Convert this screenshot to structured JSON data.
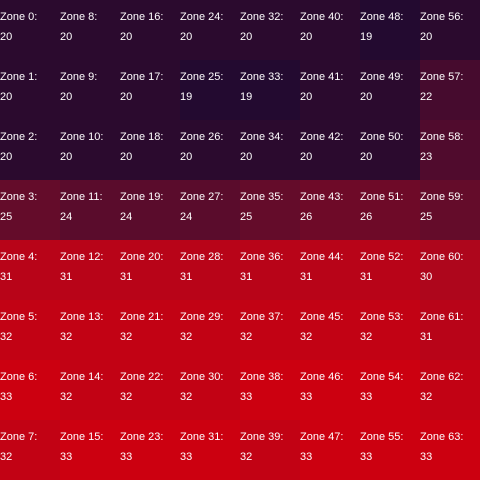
{
  "zones": [
    {
      "label": "Zone 0:",
      "value": "20",
      "color": "#2b0a2e"
    },
    {
      "label": "Zone 1:",
      "value": "20",
      "color": "#2b0a2e"
    },
    {
      "label": "Zone 2:",
      "value": "20",
      "color": "#2b0a2e"
    },
    {
      "label": "Zone 3:",
      "value": "25",
      "color": "#640c2a"
    },
    {
      "label": "Zone 4:",
      "value": "31",
      "color": "#b80418"
    },
    {
      "label": "Zone 5:",
      "value": "32",
      "color": "#c20214"
    },
    {
      "label": "Zone 6:",
      "value": "33",
      "color": "#cc0010"
    },
    {
      "label": "Zone 7:",
      "value": "32",
      "color": "#c20214"
    },
    {
      "label": "Zone 8:",
      "value": "20",
      "color": "#2b0a2e"
    },
    {
      "label": "Zone 9:",
      "value": "20",
      "color": "#2b0a2e"
    },
    {
      "label": "Zone 10:",
      "value": "20",
      "color": "#2b0a2e"
    },
    {
      "label": "Zone 11:",
      "value": "24",
      "color": "#5a0c2c"
    },
    {
      "label": "Zone 12:",
      "value": "31",
      "color": "#b80418"
    },
    {
      "label": "Zone 13:",
      "value": "32",
      "color": "#c20214"
    },
    {
      "label": "Zone 14:",
      "value": "32",
      "color": "#c20214"
    },
    {
      "label": "Zone 15:",
      "value": "33",
      "color": "#cc0010"
    },
    {
      "label": "Zone 16:",
      "value": "20",
      "color": "#2b0a2e"
    },
    {
      "label": "Zone 17:",
      "value": "20",
      "color": "#2b0a2e"
    },
    {
      "label": "Zone 18:",
      "value": "20",
      "color": "#2b0a2e"
    },
    {
      "label": "Zone 19:",
      "value": "24",
      "color": "#5a0c2c"
    },
    {
      "label": "Zone 20:",
      "value": "31",
      "color": "#b80418"
    },
    {
      "label": "Zone 21:",
      "value": "32",
      "color": "#c20214"
    },
    {
      "label": "Zone 22:",
      "value": "32",
      "color": "#c20214"
    },
    {
      "label": "Zone 23:",
      "value": "33",
      "color": "#cc0010"
    },
    {
      "label": "Zone 24:",
      "value": "20",
      "color": "#2b0a2e"
    },
    {
      "label": "Zone 25:",
      "value": "19",
      "color": "#230a30"
    },
    {
      "label": "Zone 26:",
      "value": "20",
      "color": "#2b0a2e"
    },
    {
      "label": "Zone 27:",
      "value": "24",
      "color": "#5a0c2c"
    },
    {
      "label": "Zone 28:",
      "value": "31",
      "color": "#b80418"
    },
    {
      "label": "Zone 29:",
      "value": "32",
      "color": "#c20214"
    },
    {
      "label": "Zone 30:",
      "value": "32",
      "color": "#c20214"
    },
    {
      "label": "Zone 31:",
      "value": "33",
      "color": "#cc0010"
    },
    {
      "label": "Zone 32:",
      "value": "20",
      "color": "#2b0a2e"
    },
    {
      "label": "Zone 33:",
      "value": "19",
      "color": "#230a30"
    },
    {
      "label": "Zone 34:",
      "value": "20",
      "color": "#2b0a2e"
    },
    {
      "label": "Zone 35:",
      "value": "25",
      "color": "#640c2a"
    },
    {
      "label": "Zone 36:",
      "value": "31",
      "color": "#b80418"
    },
    {
      "label": "Zone 37:",
      "value": "32",
      "color": "#c20214"
    },
    {
      "label": "Zone 38:",
      "value": "33",
      "color": "#cc0010"
    },
    {
      "label": "Zone 39:",
      "value": "32",
      "color": "#c20214"
    },
    {
      "label": "Zone 40:",
      "value": "20",
      "color": "#2b0a2e"
    },
    {
      "label": "Zone 41:",
      "value": "20",
      "color": "#2b0a2e"
    },
    {
      "label": "Zone 42:",
      "value": "20",
      "color": "#2b0a2e"
    },
    {
      "label": "Zone 43:",
      "value": "26",
      "color": "#6e0a28"
    },
    {
      "label": "Zone 44:",
      "value": "31",
      "color": "#b80418"
    },
    {
      "label": "Zone 45:",
      "value": "32",
      "color": "#c20214"
    },
    {
      "label": "Zone 46:",
      "value": "33",
      "color": "#cc0010"
    },
    {
      "label": "Zone 47:",
      "value": "33",
      "color": "#cc0010"
    },
    {
      "label": "Zone 48:",
      "value": "19",
      "color": "#230a30"
    },
    {
      "label": "Zone 49:",
      "value": "20",
      "color": "#2b0a2e"
    },
    {
      "label": "Zone 50:",
      "value": "20",
      "color": "#2b0a2e"
    },
    {
      "label": "Zone 51:",
      "value": "26",
      "color": "#6e0a28"
    },
    {
      "label": "Zone 52:",
      "value": "31",
      "color": "#b80418"
    },
    {
      "label": "Zone 53:",
      "value": "32",
      "color": "#c20214"
    },
    {
      "label": "Zone 54:",
      "value": "33",
      "color": "#cc0010"
    },
    {
      "label": "Zone 55:",
      "value": "33",
      "color": "#cc0010"
    },
    {
      "label": "Zone 56:",
      "value": "20",
      "color": "#2b0a2e"
    },
    {
      "label": "Zone 57:",
      "value": "22",
      "color": "#460b2e"
    },
    {
      "label": "Zone 58:",
      "value": "23",
      "color": "#500b2d"
    },
    {
      "label": "Zone 59:",
      "value": "25",
      "color": "#640c2a"
    },
    {
      "label": "Zone 60:",
      "value": "30",
      "color": "#ae061c"
    },
    {
      "label": "Zone 61:",
      "value": "31",
      "color": "#b80418"
    },
    {
      "label": "Zone 62:",
      "value": "32",
      "color": "#c20214"
    },
    {
      "label": "Zone 63:",
      "value": "33",
      "color": "#cc0010"
    }
  ]
}
